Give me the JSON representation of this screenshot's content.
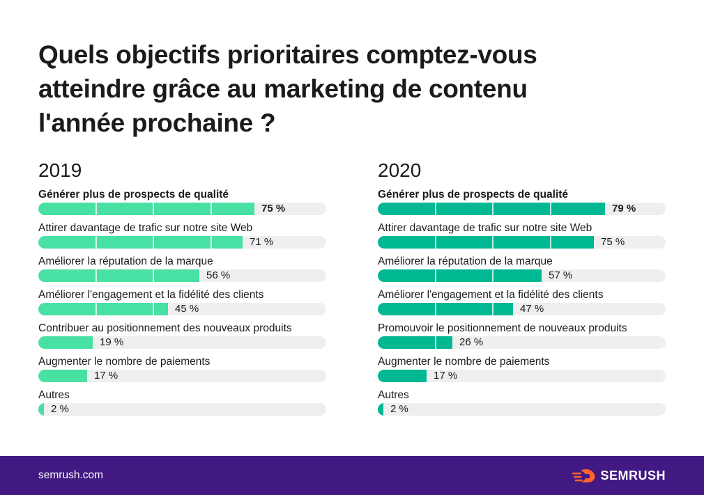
{
  "title_lines": [
    "Quels objectifs prioritaires comptez-vous",
    "atteindre grâce au marketing de contenu",
    "l'année prochaine ?"
  ],
  "colors": {
    "bar_2019": "#48e0a3",
    "bar_2020": "#00b892",
    "track": "#efefef",
    "footer": "#421983"
  },
  "chart_data": [
    {
      "type": "bar",
      "orientation": "horizontal",
      "title": "2019",
      "xlim": [
        0,
        100
      ],
      "categories": [
        "Générer plus de prospects de qualité",
        "Attirer davantage de trafic sur notre site Web",
        "Améliorer la réputation de la marque",
        "Améliorer l'engagement et la fidélité des clients",
        "Contribuer au positionnement des nouveaux produits",
        "Augmenter le nombre de paiements",
        "Autres"
      ],
      "values": [
        75,
        71,
        56,
        45,
        19,
        17,
        2
      ],
      "value_labels": [
        "75 %",
        "71 %",
        "56 %",
        "45 %",
        "19 %",
        "17 %",
        "2 %"
      ]
    },
    {
      "type": "bar",
      "orientation": "horizontal",
      "title": "2020",
      "xlim": [
        0,
        100
      ],
      "categories": [
        "Générer plus de prospects de qualité",
        "Attirer davantage de trafic sur notre site Web",
        "Améliorer la réputation de la marque",
        "Améliorer l'engagement et la fidélité des clients",
        "Promouvoir le positionnement de nouveaux produits",
        "Augmenter le nombre de paiements",
        "Autres"
      ],
      "values": [
        79,
        75,
        57,
        47,
        26,
        17,
        2
      ],
      "value_labels": [
        "79 %",
        "75 %",
        "57 %",
        "47 %",
        "26 %",
        "17 %",
        "2 %"
      ]
    }
  ],
  "footer": {
    "site": "semrush.com",
    "brand": "SEMRUSH",
    "brand_icon": "semrush-fire-icon"
  }
}
